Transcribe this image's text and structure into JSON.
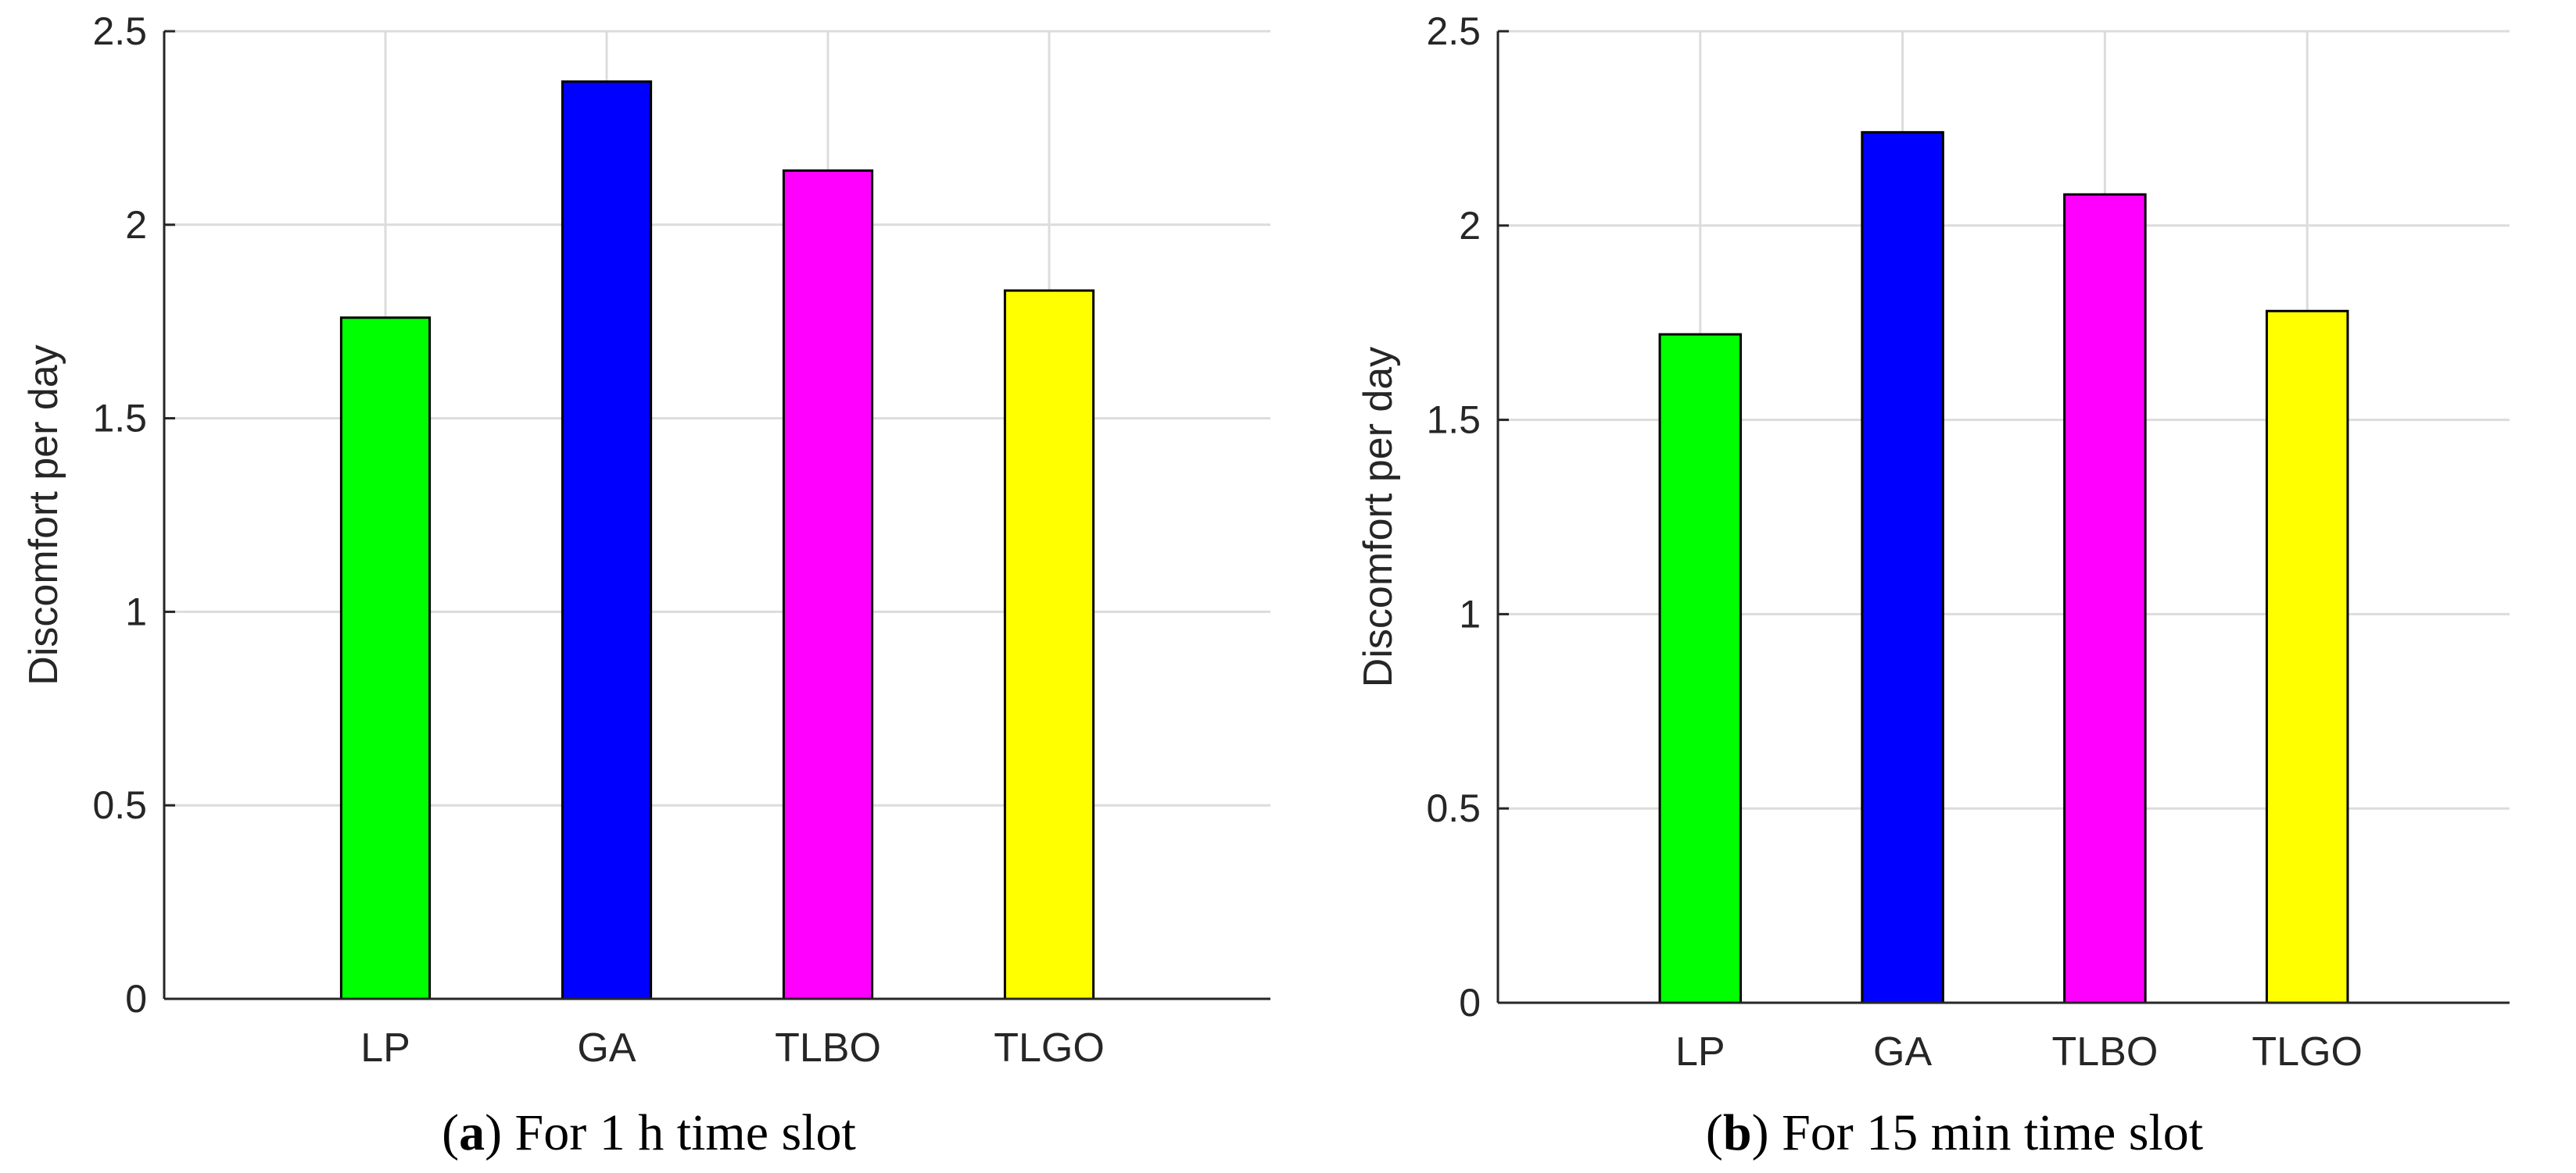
{
  "chart_data": [
    {
      "type": "bar",
      "categories": [
        "LP",
        "GA",
        "TLBO",
        "TLGO"
      ],
      "values": [
        1.76,
        2.37,
        2.14,
        1.83
      ],
      "colors": [
        "#00ff00",
        "#0000ff",
        "#ff00ff",
        "#ffff00"
      ],
      "ylabel": "Discomfort per day",
      "xlabel": "",
      "ylim": [
        0,
        2.5
      ],
      "yticks": [
        0,
        0.5,
        1,
        1.5,
        2,
        2.5
      ],
      "ytick_labels": [
        "0",
        "0.5",
        "1",
        "1.5",
        "2",
        "2.5"
      ],
      "grid": true,
      "caption_letter": "a",
      "caption_text": "For 1 h time slot"
    },
    {
      "type": "bar",
      "categories": [
        "LP",
        "GA",
        "TLBO",
        "TLGO"
      ],
      "values": [
        1.72,
        2.24,
        2.08,
        1.78
      ],
      "colors": [
        "#00ff00",
        "#0000ff",
        "#ff00ff",
        "#ffff00"
      ],
      "ylabel": "Discomfort per day",
      "xlabel": "",
      "ylim": [
        0,
        2.5
      ],
      "yticks": [
        0,
        0.5,
        1,
        1.5,
        2,
        2.5
      ],
      "ytick_labels": [
        "0",
        "0.5",
        "1",
        "1.5",
        "2",
        "2.5"
      ],
      "grid": true,
      "caption_letter": "b",
      "caption_text": "For 15 min time slot"
    }
  ]
}
